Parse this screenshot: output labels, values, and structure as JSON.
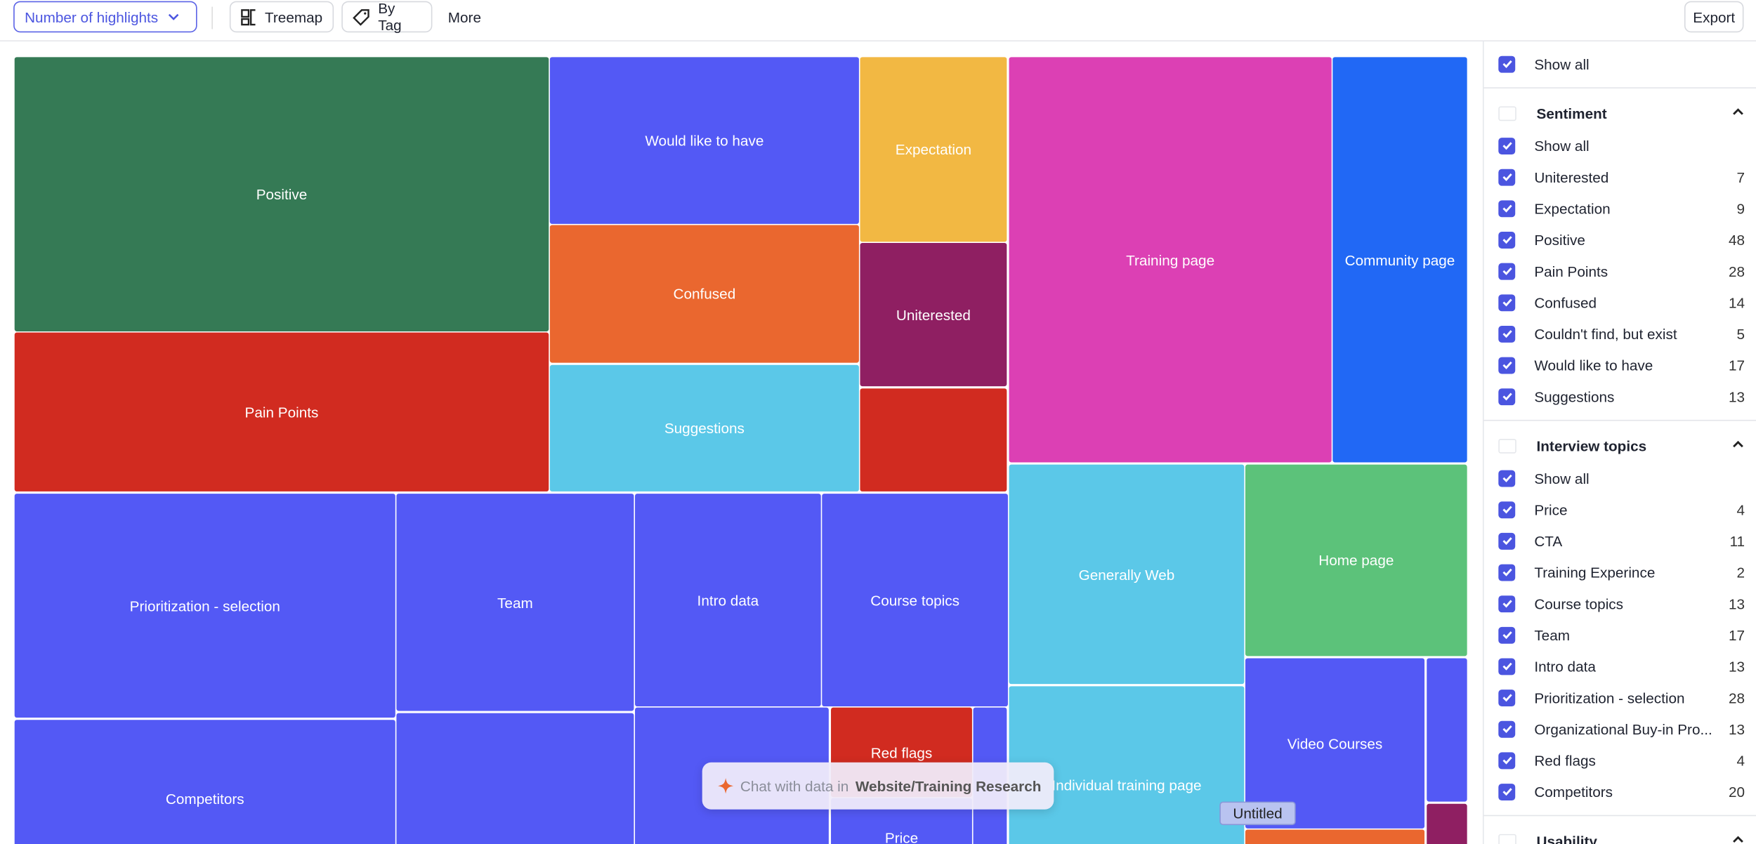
{
  "toolbar": {
    "metric": "Number of highlights",
    "view": "Treemap",
    "group": "By Tag",
    "more": "More",
    "export": "Export"
  },
  "treemap": {
    "tiles": [
      {
        "label": "Positive",
        "color": "#357a55"
      },
      {
        "label": "Pain Points",
        "color": "#d12b20"
      },
      {
        "label": "Would like to have",
        "color": "#5359f5"
      },
      {
        "label": "Confused",
        "color": "#ea672f"
      },
      {
        "label": "Suggestions",
        "color": "#5bc8e8"
      },
      {
        "label": "Expectation",
        "color": "#f2b843"
      },
      {
        "label": "Uniterested",
        "color": "#8f1f62"
      },
      {
        "label": null,
        "color": "#d12b20"
      },
      {
        "label": "Training page",
        "color": "#dc40b4"
      },
      {
        "label": "Community page",
        "color": "#2168f5"
      },
      {
        "label": "Prioritization - selection",
        "color": "#5359f5"
      },
      {
        "label": "Team",
        "color": "#5359f5"
      },
      {
        "label": "Intro data",
        "color": "#5359f5"
      },
      {
        "label": "Course topics",
        "color": "#5359f5"
      },
      {
        "label": "Competitors",
        "color": "#5359f5"
      },
      {
        "label": null,
        "color": "#5359f5"
      },
      {
        "label": null,
        "color": "#5359f5"
      },
      {
        "label": "Red flags",
        "color": "#d12b20"
      },
      {
        "label": "Price",
        "color": "#5359f5"
      },
      {
        "label": null,
        "color": "#5359f5"
      },
      {
        "label": "Generally Web",
        "color": "#5bc8e8"
      },
      {
        "label": "Individual training page",
        "color": "#5bc8e8"
      },
      {
        "label": "Home page",
        "color": "#5cc27a"
      },
      {
        "label": "Video Courses",
        "color": "#5359f5"
      },
      {
        "label": null,
        "color": "#5359f5"
      },
      {
        "label": null,
        "color": "#8f1f62"
      },
      {
        "label": null,
        "color": "#ea672f"
      }
    ]
  },
  "chat": {
    "prefix": "Chat with data in",
    "project": "Website/Training Research"
  },
  "tooltip": "Untitled",
  "sidebar": {
    "show_all": "Show all",
    "groups": [
      {
        "title": "Sentiment",
        "show_all": "Show all",
        "items": [
          {
            "label": "Uniterested",
            "count": 7
          },
          {
            "label": "Expectation",
            "count": 9
          },
          {
            "label": "Positive",
            "count": 48
          },
          {
            "label": "Pain Points",
            "count": 28
          },
          {
            "label": "Confused",
            "count": 14
          },
          {
            "label": "Couldn't find, but exist",
            "count": 5
          },
          {
            "label": "Would like to have",
            "count": 17
          },
          {
            "label": "Suggestions",
            "count": 13
          }
        ]
      },
      {
        "title": "Interview topics",
        "show_all": "Show all",
        "items": [
          {
            "label": "Price",
            "count": 4
          },
          {
            "label": "CTA",
            "count": 11
          },
          {
            "label": "Training Experince",
            "count": 2
          },
          {
            "label": "Course topics",
            "count": 13
          },
          {
            "label": "Team",
            "count": 17
          },
          {
            "label": "Intro data",
            "count": 13
          },
          {
            "label": "Prioritization - selection",
            "count": 28
          },
          {
            "label": "Organizational Buy-in Pro...",
            "count": 13
          },
          {
            "label": "Red flags",
            "count": 4
          },
          {
            "label": "Competitors",
            "count": 20
          }
        ]
      },
      {
        "title": "Usability"
      }
    ]
  }
}
